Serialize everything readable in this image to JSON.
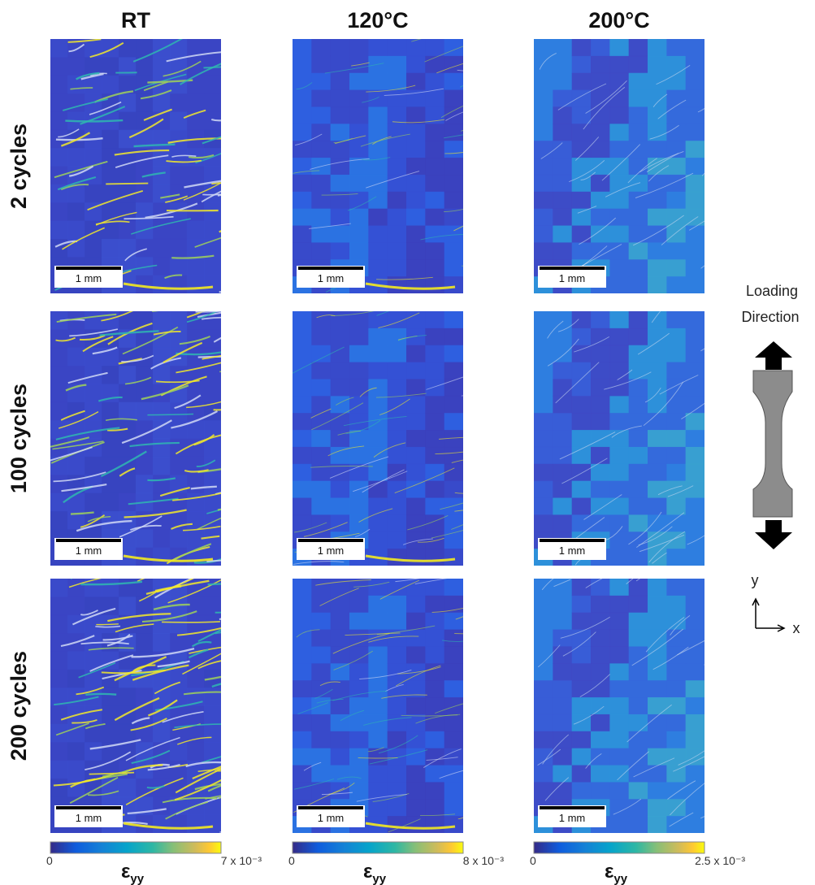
{
  "columns": [
    {
      "header": "RT",
      "colorbar": {
        "min": "0",
        "max": "7 x 10⁻³",
        "symbol": "ε",
        "subscript": "yy"
      }
    },
    {
      "header": "120°C",
      "colorbar": {
        "min": "0",
        "max": "8 x 10⁻³",
        "symbol": "ε",
        "subscript": "yy"
      }
    },
    {
      "header": "200°C",
      "colorbar": {
        "min": "0",
        "max": "2.5 x 10⁻³",
        "symbol": "ε",
        "subscript": "yy"
      }
    }
  ],
  "rows": [
    {
      "label": "2 cycles"
    },
    {
      "label": "100 cycles"
    },
    {
      "label": "200 cycles"
    }
  ],
  "panels": [
    [
      {
        "scale_bar": "1 mm"
      },
      {
        "scale_bar": "1 mm"
      },
      {
        "scale_bar": "1 mm"
      }
    ],
    [
      {
        "scale_bar": "1 mm"
      },
      {
        "scale_bar": "1 mm"
      },
      {
        "scale_bar": "1 mm"
      }
    ],
    [
      {
        "scale_bar": "1 mm"
      },
      {
        "scale_bar": "1 mm"
      },
      {
        "scale_bar": "1 mm"
      }
    ]
  ],
  "legend": {
    "title_lines": [
      "Loading",
      "Direction"
    ],
    "axis_y": "y",
    "axis_x": "x"
  }
}
